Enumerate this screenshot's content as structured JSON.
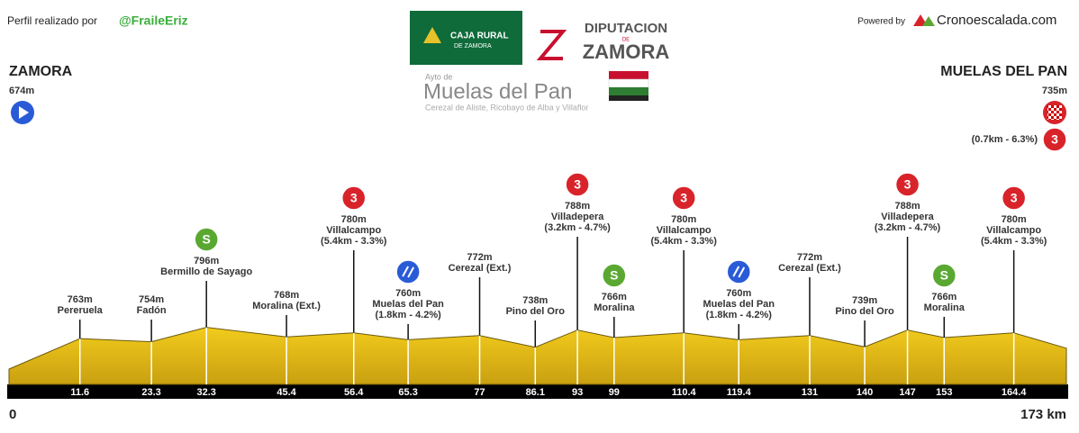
{
  "header": {
    "credit": "Perfil realizado por",
    "author": "@FraileEriz",
    "powered": "Powered by",
    "site": "Cronoescalada.com"
  },
  "logos": {
    "caja_rural": [
      "CAJA RURAL",
      "DE ZAMORA"
    ],
    "diputacion": [
      "DIPUTACION",
      "DE",
      "ZAMORA"
    ],
    "ayto": {
      "prefix": "Ayto de",
      "name": "Muelas del Pan",
      "sub": "Cerezal de Aliste, Ricobayo de Alba y Villaflor"
    }
  },
  "chart_data": {
    "type": "area",
    "color": "#f2cb1d",
    "x": [
      0,
      11.6,
      23.3,
      32.3,
      45.4,
      56.4,
      65.3,
      77,
      86.1,
      93,
      99,
      110.4,
      119.4,
      131,
      140,
      147,
      153,
      164.4,
      173
    ],
    "values": [
      674,
      763,
      754,
      796,
      768,
      780,
      760,
      772,
      738,
      788,
      766,
      780,
      760,
      772,
      739,
      788,
      766,
      780,
      735
    ],
    "value_labels": [
      "674m",
      "763m",
      "754m",
      "796m",
      "768m",
      "780m",
      "760m",
      "772m",
      "738m",
      "788m",
      "766m",
      "780m",
      "760m",
      "772m",
      "739m",
      "788m",
      "766m",
      "780m",
      "735m"
    ],
    "names": [
      "ZAMORA",
      "Pereruela",
      "Fadón",
      "Bermillo de Sayago",
      "Moralina (Ext.)",
      "Villalcampo",
      "Muelas del Pan",
      "Cerezal (Ext.)",
      "Pino del Oro",
      "Villadepera",
      "Moralina",
      "Villalcampo",
      "Muelas del Pan",
      "Cerezal (Ext.)",
      "Pino del Oro",
      "Villadepera",
      "Moralina",
      "Villalcampo",
      "MUELAS DEL PAN"
    ],
    "climbs": [
      null,
      null,
      null,
      null,
      null,
      "(5.4km - 3.3%)",
      "(1.8km - 4.2%)",
      null,
      null,
      "(3.2km - 4.7%)",
      null,
      "(5.4km - 3.3%)",
      "(1.8km - 4.2%)",
      null,
      null,
      "(3.2km - 4.7%)",
      null,
      "(5.4km - 3.3%)",
      "(0.7km - 6.3%)"
    ],
    "icons": [
      null,
      null,
      null,
      {
        "label": "S",
        "color": "#5aa832"
      },
      null,
      {
        "label": "3",
        "color": "#d9232a"
      },
      {
        "color": "#2a5bd7"
      },
      null,
      null,
      {
        "label": "3",
        "color": "#d9232a"
      },
      {
        "label": "S",
        "color": "#5aa832"
      },
      {
        "label": "3",
        "color": "#d9232a"
      },
      {
        "color": "#2a5bd7"
      },
      null,
      null,
      {
        "label": "3",
        "color": "#d9232a"
      },
      {
        "label": "S",
        "color": "#5aa832"
      },
      {
        "label": "3",
        "color": "#d9232a"
      },
      {
        "label": "3",
        "color": "#d9232a"
      }
    ],
    "xlim": [
      0,
      173
    ],
    "xticks": [
      0,
      11.6,
      23.3,
      32.3,
      45.4,
      56.4,
      65.3,
      77,
      86.1,
      93,
      99,
      110.4,
      119.4,
      131,
      140,
      147,
      153,
      164.4,
      {
        "value": 173,
        "label": "173 km"
      }
    ]
  }
}
